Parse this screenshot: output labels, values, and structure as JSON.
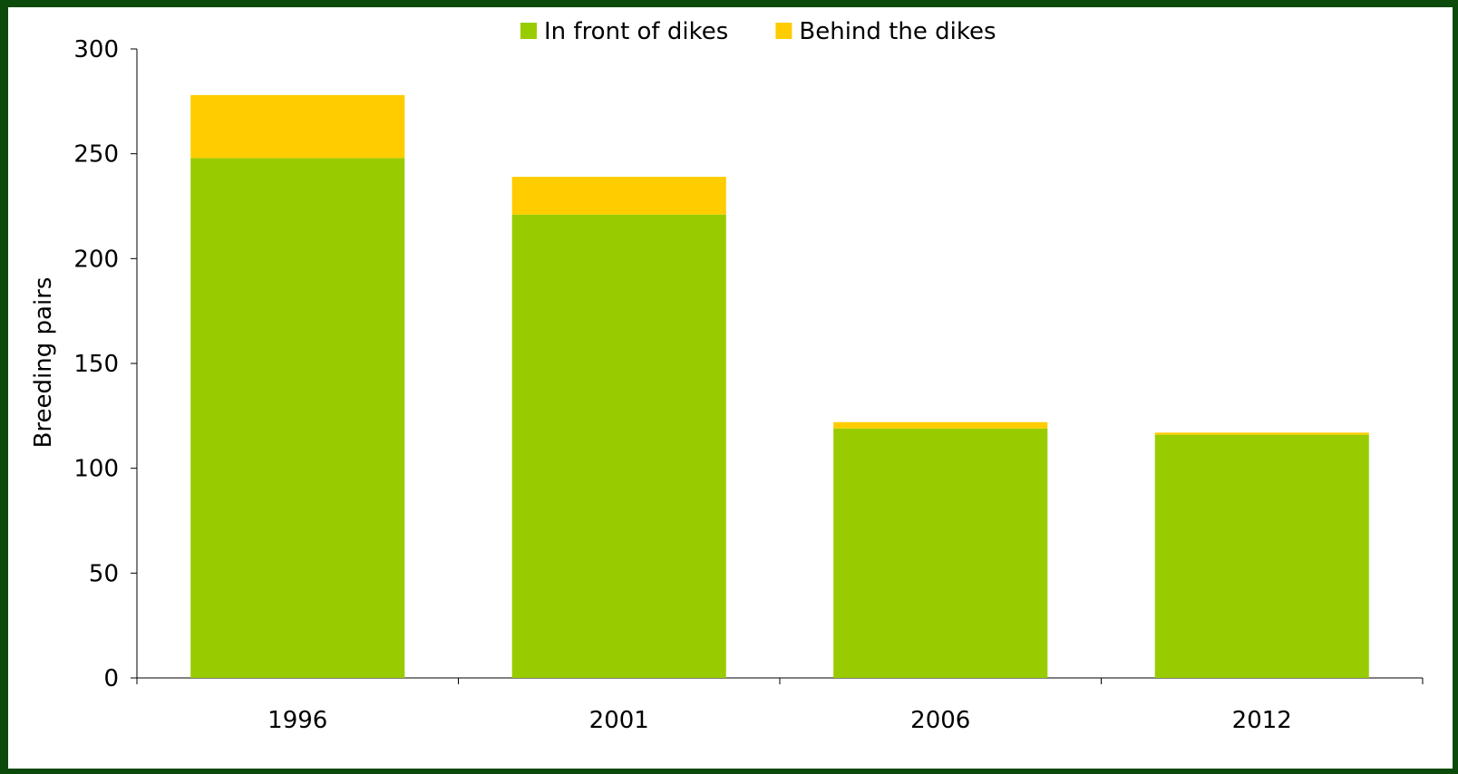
{
  "chart_data": {
    "type": "bar",
    "stacked": true,
    "categories": [
      "1996",
      "2001",
      "2006",
      "2012"
    ],
    "series": [
      {
        "name": "In front of dikes",
        "color": "#99cc00",
        "values": [
          248,
          221,
          119,
          116
        ]
      },
      {
        "name": "Behind the dikes",
        "color": "#ffcc00",
        "values": [
          30,
          18,
          3,
          1
        ]
      }
    ],
    "xlabel": "",
    "ylabel": "Breeding pairs",
    "ylim": [
      0,
      300
    ],
    "yticks": [
      0,
      50,
      100,
      150,
      200,
      250,
      300
    ],
    "grid": false,
    "legend_position": "top"
  }
}
